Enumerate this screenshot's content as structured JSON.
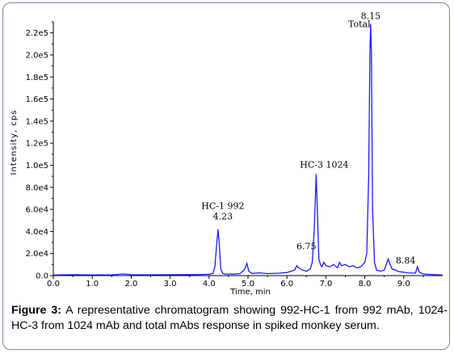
{
  "caption": {
    "label": "Figure 3:",
    "text": " A representative chromatogram showing 992-HC-1 from 992 mAb, 1024-HC-3 from 1024 mAb and total mAbs response in spiked monkey serum."
  },
  "chart_data": {
    "type": "line",
    "xlabel": "Time, min",
    "ylabel": "Intensity, cps",
    "xlim": [
      0.0,
      10.0
    ],
    "ylim": [
      0,
      230000
    ],
    "x_ticks": [
      "0.0",
      "1.0",
      "2.0",
      "3.0",
      "4.0",
      "5.0",
      "6.0",
      "7.0",
      "8.0",
      "9.0"
    ],
    "x_tick_values": [
      0,
      1,
      2,
      3,
      4,
      5,
      6,
      7,
      8,
      9
    ],
    "y_ticks": [
      "0.0",
      "2.0e4",
      "4.0e4",
      "6.0e4",
      "8.0e4",
      "1.0e5",
      "1.2e5",
      "1.4e5",
      "1.6e5",
      "1.8e5",
      "2.0e5",
      "2.2e5"
    ],
    "y_tick_values": [
      0,
      20000,
      40000,
      60000,
      80000,
      100000,
      120000,
      140000,
      160000,
      180000,
      200000,
      220000
    ],
    "line_color": "#1a1aff",
    "series": [
      {
        "x": [
          0.0,
          0.5,
          1.0,
          1.5,
          1.8,
          2.0,
          2.5,
          3.0,
          3.5,
          3.8,
          4.0,
          4.1,
          4.15,
          4.2,
          4.23,
          4.26,
          4.3,
          4.35,
          4.4,
          4.6,
          4.8,
          4.92,
          4.97,
          5.02,
          5.1,
          5.3,
          5.5,
          5.8,
          6.0,
          6.2,
          6.25,
          6.3,
          6.4,
          6.5,
          6.6,
          6.65,
          6.7,
          6.75,
          6.78,
          6.82,
          6.86,
          6.9,
          6.95,
          7.0,
          7.1,
          7.2,
          7.3,
          7.35,
          7.4,
          7.5,
          7.6,
          7.7,
          7.8,
          7.9,
          8.0,
          8.05,
          8.1,
          8.13,
          8.15,
          8.17,
          8.2,
          8.25,
          8.3,
          8.4,
          8.5,
          8.6,
          8.65,
          8.7,
          8.8,
          8.84,
          8.9,
          9.0,
          9.1,
          9.3,
          9.35,
          9.4,
          9.5,
          9.8,
          10.0
        ],
        "y": [
          500,
          800,
          600,
          700,
          1500,
          800,
          700,
          800,
          900,
          1000,
          1200,
          2000,
          8000,
          30000,
          42000,
          30000,
          6000,
          2000,
          1500,
          1300,
          1800,
          6000,
          11000,
          4000,
          2000,
          2500,
          1800,
          2200,
          2800,
          5000,
          9000,
          7000,
          5000,
          4000,
          6000,
          12000,
          40000,
          92000,
          60000,
          15000,
          10000,
          8000,
          12000,
          9000,
          8000,
          10000,
          7000,
          12000,
          9000,
          10000,
          8000,
          9000,
          7000,
          8000,
          12000,
          20000,
          90000,
          200000,
          228000,
          200000,
          60000,
          12000,
          5000,
          4000,
          5000,
          15000,
          10000,
          6000,
          5000,
          4000,
          3500,
          3000,
          2500,
          2200,
          8000,
          3000,
          1500,
          800,
          500
        ]
      }
    ],
    "annotations": [
      {
        "lines": [
          "HC-1 992",
          "4.23"
        ],
        "x": 4.23,
        "y": 42000
      },
      {
        "lines": [
          "6.75"
        ],
        "x": 6.5,
        "y": 15000
      },
      {
        "lines": [
          "HC-3 1024"
        ],
        "x": 6.75,
        "y": 92000
      },
      {
        "lines": [
          "Total"
        ],
        "x": 8.15,
        "y": 228000
      },
      {
        "lines": [
          "8.15"
        ],
        "x": 8.15,
        "y": 228000
      },
      {
        "lines": [
          "8.84"
        ],
        "x": 8.84,
        "y": 5000
      }
    ]
  }
}
